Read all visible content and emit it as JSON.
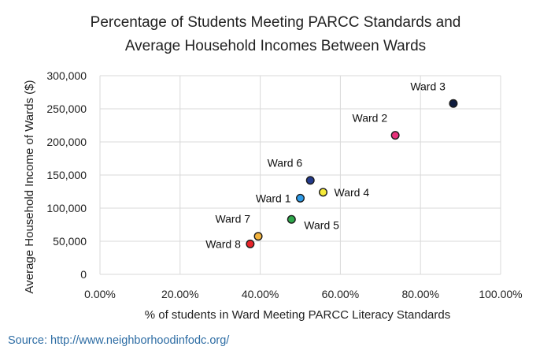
{
  "chart_data": {
    "type": "scatter",
    "title_lines": [
      "Percentage of Students Meeting PARCC Standards and",
      "Average Household Incomes Between Wards"
    ],
    "xlabel": "% of students in Ward Meeting PARCC Literacy Standards",
    "ylabel": "Average Household Income of Wards ($)",
    "xlim": [
      0,
      1
    ],
    "ylim": [
      0,
      300000
    ],
    "x_ticks": [
      0,
      0.2,
      0.4,
      0.6,
      0.8,
      1.0
    ],
    "x_tick_labels": [
      "0.00%",
      "20.00%",
      "40.00%",
      "60.00%",
      "80.00%",
      "100.00%"
    ],
    "y_ticks": [
      0,
      50000,
      100000,
      150000,
      200000,
      250000,
      300000
    ],
    "y_tick_labels": [
      "0",
      "50,000",
      "100,000",
      "150,000",
      "200,000",
      "250,000",
      "300,000"
    ],
    "grid": true,
    "points": [
      {
        "label": "Ward 1",
        "x": 0.5,
        "y": 115000,
        "color": "#2e9be8",
        "label_side": "left"
      },
      {
        "label": "Ward 2",
        "x": 0.737,
        "y": 210000,
        "color": "#e8317b",
        "label_side": "upper-left"
      },
      {
        "label": "Ward 3",
        "x": 0.882,
        "y": 258000,
        "color": "#0d1b3e",
        "label_side": "upper-left"
      },
      {
        "label": "Ward 4",
        "x": 0.557,
        "y": 124000,
        "color": "#f5ea3a",
        "label_side": "right"
      },
      {
        "label": "Ward 5",
        "x": 0.478,
        "y": 83000,
        "color": "#2ea84b",
        "label_side": "lower-right"
      },
      {
        "label": "Ward 6",
        "x": 0.525,
        "y": 142000,
        "color": "#233a8c",
        "label_side": "upper-left"
      },
      {
        "label": "Ward 7",
        "x": 0.395,
        "y": 57500,
        "color": "#f2b33d",
        "label_side": "upper-left"
      },
      {
        "label": "Ward 8",
        "x": 0.375,
        "y": 46000,
        "color": "#e8242a",
        "label_side": "left"
      }
    ]
  },
  "source": "Source: http://www.neighborhoodinfodc.org/"
}
